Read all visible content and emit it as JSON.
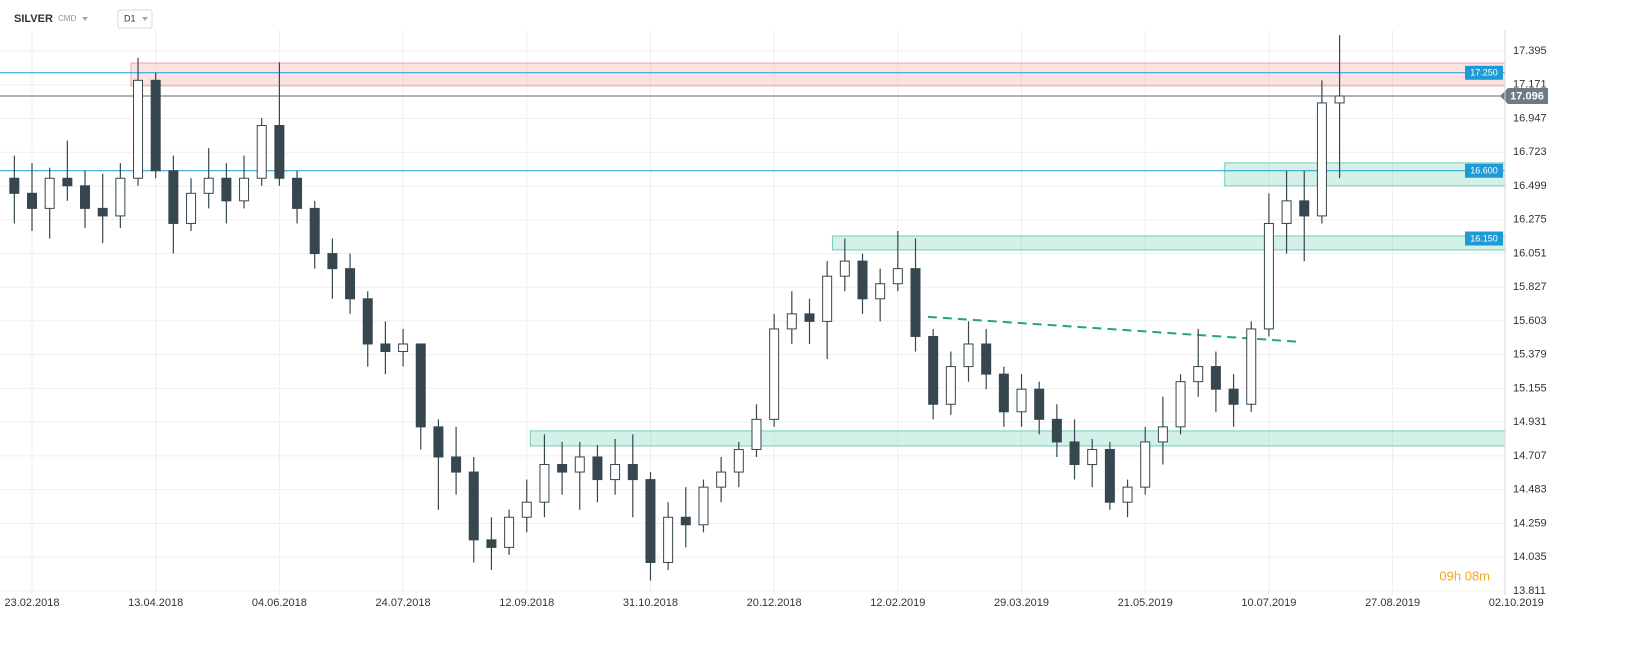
{
  "chart_data": {
    "type": "candlestick",
    "title": "SILVER",
    "subtitle": "CMD",
    "timeframe": "D1",
    "countdown": "09h 08m",
    "categories": [
      null,
      "23.02.2018",
      null,
      null,
      null,
      null,
      null,
      null,
      "13.04.2018",
      null,
      null,
      null,
      null,
      null,
      null,
      "04.06.2018",
      null,
      null,
      null,
      null,
      null,
      null,
      "24.07.2018",
      null,
      null,
      null,
      null,
      null,
      null,
      "12.09.2018",
      null,
      null,
      null,
      null,
      null,
      null,
      "31.10.2018",
      null,
      null,
      null,
      null,
      null,
      null,
      "20.12.2018",
      null,
      null,
      null,
      null,
      null,
      null,
      "12.02.2019",
      null,
      null,
      null,
      null,
      null,
      null,
      "29.03.2019",
      null,
      null,
      null,
      null,
      null,
      null,
      "21.05.2019",
      null,
      null,
      null,
      null,
      null,
      null,
      "10.07.2019",
      null,
      null,
      null,
      null,
      null,
      null,
      "27.08.2019",
      null,
      null,
      null,
      null,
      null,
      null,
      "02.10.2019"
    ],
    "open": [
      16.55,
      16.45,
      16.35,
      16.55,
      16.5,
      16.35,
      16.3,
      16.55,
      17.2,
      16.6,
      16.25,
      16.45,
      16.55,
      16.4,
      16.55,
      16.9,
      16.55,
      16.35,
      16.05,
      15.95,
      15.75,
      15.45,
      15.4,
      15.45,
      14.9,
      14.7,
      14.6,
      14.15,
      14.1,
      14.3,
      14.4,
      14.65,
      14.6,
      14.7,
      14.55,
      14.65,
      14.55,
      14.0,
      14.3,
      14.25,
      14.5,
      14.6,
      14.75,
      14.95,
      15.55,
      15.65,
      15.6,
      15.9,
      16.0,
      15.75,
      15.85,
      15.95,
      15.5,
      15.05,
      15.3,
      15.45,
      15.25,
      15.0,
      15.15,
      14.95,
      14.8,
      14.65,
      14.75,
      14.4,
      14.5,
      14.8,
      14.9,
      15.2,
      15.3,
      15.15,
      15.05,
      15.55,
      16.25,
      16.4,
      16.3,
      17.05,
      null,
      null,
      null,
      null,
      null,
      null,
      null,
      null,
      null,
      null
    ],
    "high": [
      16.7,
      16.65,
      16.62,
      16.8,
      16.6,
      16.58,
      16.65,
      17.35,
      17.25,
      16.7,
      16.55,
      16.75,
      16.65,
      16.7,
      16.95,
      17.32,
      16.6,
      16.4,
      16.15,
      16.05,
      15.8,
      15.6,
      15.55,
      15.45,
      14.95,
      14.9,
      14.7,
      14.3,
      14.35,
      14.55,
      14.85,
      14.8,
      14.8,
      14.78,
      14.82,
      14.85,
      14.6,
      14.4,
      14.5,
      14.55,
      14.7,
      14.8,
      15.05,
      15.65,
      15.8,
      15.75,
      16.0,
      16.15,
      16.05,
      15.95,
      16.2,
      16.15,
      15.55,
      15.4,
      15.6,
      15.55,
      15.3,
      15.25,
      15.2,
      15.05,
      14.95,
      14.82,
      14.8,
      14.55,
      14.9,
      15.1,
      15.25,
      15.55,
      15.4,
      15.25,
      15.6,
      16.45,
      16.6,
      16.6,
      17.2,
      17.5,
      null,
      null,
      null,
      null,
      null,
      null,
      null,
      null,
      null,
      null
    ],
    "low": [
      16.25,
      16.2,
      16.15,
      16.4,
      16.22,
      16.12,
      16.22,
      16.5,
      16.55,
      16.05,
      16.2,
      16.35,
      16.25,
      16.35,
      16.5,
      16.5,
      16.25,
      15.95,
      15.75,
      15.65,
      15.3,
      15.25,
      15.3,
      14.75,
      14.35,
      14.45,
      14.0,
      13.95,
      14.05,
      14.2,
      14.3,
      14.45,
      14.35,
      14.4,
      14.45,
      14.3,
      13.88,
      13.95,
      14.1,
      14.2,
      14.4,
      14.5,
      14.7,
      14.9,
      15.45,
      15.45,
      15.35,
      15.8,
      15.65,
      15.6,
      15.8,
      15.4,
      14.95,
      14.98,
      15.2,
      15.15,
      14.9,
      14.9,
      14.85,
      14.7,
      14.55,
      14.5,
      14.35,
      14.3,
      14.45,
      14.65,
      14.85,
      15.1,
      15.0,
      14.9,
      15.0,
      15.5,
      16.05,
      16.0,
      16.25,
      16.55,
      null,
      null,
      null,
      null,
      null,
      null,
      null,
      null,
      null,
      null
    ],
    "close": [
      16.45,
      16.35,
      16.55,
      16.5,
      16.35,
      16.3,
      16.55,
      17.2,
      16.6,
      16.25,
      16.45,
      16.55,
      16.4,
      16.55,
      16.9,
      16.55,
      16.35,
      16.05,
      15.95,
      15.75,
      15.45,
      15.4,
      15.45,
      14.9,
      14.7,
      14.6,
      14.15,
      14.1,
      14.3,
      14.4,
      14.65,
      14.6,
      14.7,
      14.55,
      14.65,
      14.55,
      14.0,
      14.3,
      14.25,
      14.5,
      14.6,
      14.75,
      14.95,
      15.55,
      15.65,
      15.6,
      15.9,
      16.0,
      15.75,
      15.85,
      15.95,
      15.5,
      15.05,
      15.3,
      15.45,
      15.25,
      15.0,
      15.15,
      14.95,
      14.8,
      14.65,
      14.75,
      14.4,
      14.5,
      14.8,
      14.9,
      15.2,
      15.3,
      15.15,
      15.05,
      15.55,
      16.25,
      16.4,
      16.3,
      17.05,
      17.096,
      null,
      null,
      null,
      null,
      null,
      null,
      null,
      null,
      null,
      null
    ],
    "up_color": "#ffffff",
    "down_color": "#37474f",
    "ylim": [
      13.784,
      17.534
    ],
    "yticks": [
      13.811,
      14.035,
      14.259,
      14.483,
      14.707,
      14.931,
      15.155,
      15.379,
      15.603,
      15.827,
      16.051,
      16.275,
      16.499,
      16.723,
      16.947,
      17.171,
      17.395
    ],
    "grid": true,
    "zones": [
      {
        "low": 17.163,
        "high": 17.315,
        "start": 6.6,
        "color": "#f08080"
      },
      {
        "low": 16.499,
        "high": 16.652,
        "start": 68.5,
        "color": "#3cbf9a"
      },
      {
        "low": 16.074,
        "high": 16.167,
        "start": 46.3,
        "color": "#3cbf9a"
      },
      {
        "low": 14.773,
        "high": 14.873,
        "start": 29.2,
        "color": "#3cbf9a"
      }
    ],
    "levels": [
      {
        "value": 17.25,
        "label": "17.250",
        "color": "#1e9bd7",
        "line": true
      },
      {
        "value": 16.6,
        "label": "16.600",
        "color": "#1e9bd7",
        "line": true
      },
      {
        "value": 16.15,
        "label": "16.150",
        "color": "#1e9bd7",
        "line": false
      }
    ],
    "last_price": {
      "value": 17.096,
      "label": "17.096",
      "color": "#6f7a82"
    },
    "trendline": {
      "x": [
        51.7,
        72.8
      ],
      "y": [
        15.63,
        15.464
      ],
      "color": "#22a86e"
    }
  }
}
